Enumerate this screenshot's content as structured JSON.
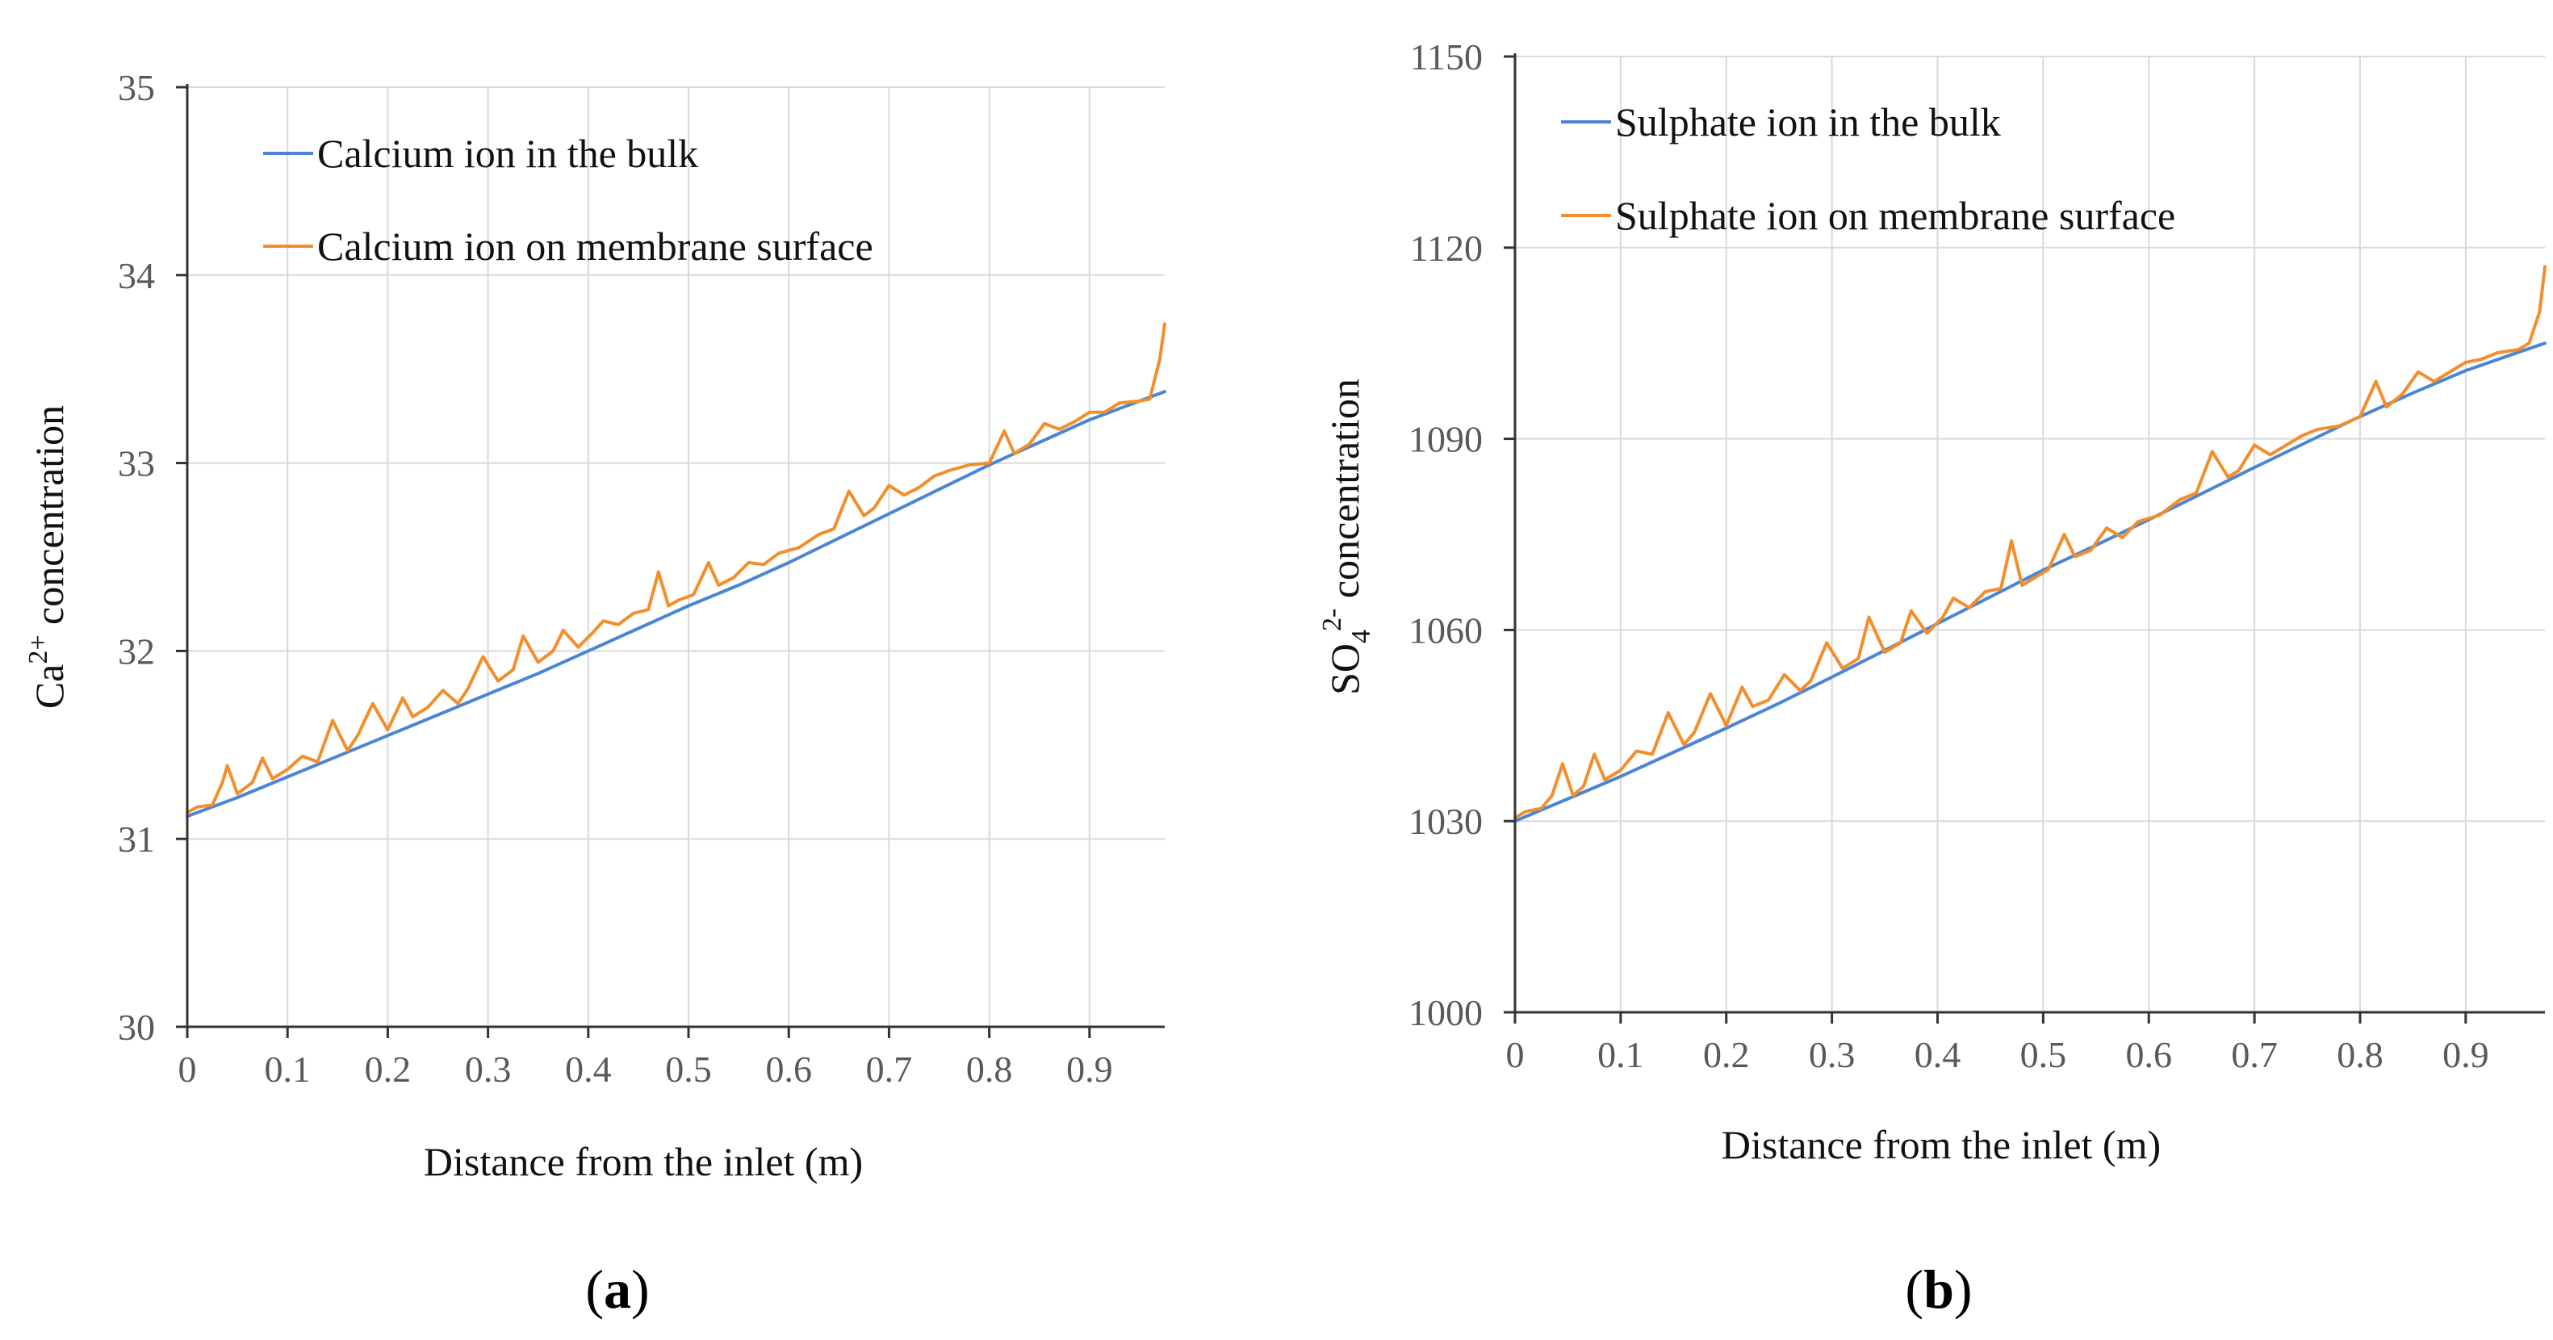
{
  "colors": {
    "bulk": "#4a86d4",
    "surface": "#f28e2b",
    "grid": "#d9d9d9",
    "frame": "#333333"
  },
  "chart_data": [
    {
      "type": "line",
      "panel_label": "a",
      "title": "",
      "xlabel": "Distance from the inlet (m)",
      "ylabel_main": "Ca",
      "ylabel_super": "2+",
      "ylabel_rest": " concentration",
      "xlim": [
        0,
        0.975
      ],
      "ylim": [
        30,
        35
      ],
      "xticks": [
        0,
        0.1,
        0.2,
        0.3,
        0.4,
        0.5,
        0.6,
        0.7,
        0.8,
        0.9
      ],
      "xtick_labels": [
        "0",
        "0.1",
        "0.2",
        "0.3",
        "0.4",
        "0.5",
        "0.6",
        "0.7",
        "0.8",
        "0.9"
      ],
      "yticks": [
        30,
        31,
        32,
        33,
        34,
        35
      ],
      "ytick_labels": [
        "30",
        "31",
        "32",
        "33",
        "34",
        "35"
      ],
      "grid": true,
      "legend_position": "top-left",
      "series": [
        {
          "name": "Calcium ion in the bulk",
          "color_key": "bulk",
          "x": [
            0,
            0.05,
            0.1,
            0.15,
            0.2,
            0.25,
            0.3,
            0.35,
            0.4,
            0.45,
            0.5,
            0.55,
            0.6,
            0.65,
            0.7,
            0.75,
            0.8,
            0.85,
            0.9,
            0.95,
            0.975
          ],
          "y": [
            31.12,
            31.22,
            31.33,
            31.44,
            31.55,
            31.66,
            31.77,
            31.88,
            32.0,
            32.12,
            32.24,
            32.35,
            32.47,
            32.6,
            32.73,
            32.86,
            32.99,
            33.11,
            33.23,
            33.33,
            33.38
          ]
        },
        {
          "name": "Calcium ion on membrane surface",
          "color_key": "surface",
          "x": [
            0,
            0.01,
            0.025,
            0.035,
            0.04,
            0.05,
            0.065,
            0.075,
            0.085,
            0.1,
            0.115,
            0.13,
            0.145,
            0.16,
            0.17,
            0.185,
            0.2,
            0.215,
            0.225,
            0.24,
            0.255,
            0.27,
            0.28,
            0.295,
            0.31,
            0.325,
            0.335,
            0.35,
            0.365,
            0.375,
            0.39,
            0.405,
            0.415,
            0.43,
            0.445,
            0.46,
            0.47,
            0.48,
            0.49,
            0.505,
            0.52,
            0.53,
            0.545,
            0.56,
            0.575,
            0.59,
            0.61,
            0.63,
            0.645,
            0.66,
            0.675,
            0.685,
            0.7,
            0.715,
            0.73,
            0.745,
            0.76,
            0.78,
            0.8,
            0.815,
            0.825,
            0.84,
            0.855,
            0.87,
            0.885,
            0.9,
            0.915,
            0.93,
            0.95,
            0.96,
            0.97,
            0.975
          ],
          "y": [
            31.14,
            31.17,
            31.18,
            31.3,
            31.39,
            31.24,
            31.3,
            31.43,
            31.32,
            31.37,
            31.44,
            31.41,
            31.63,
            31.47,
            31.55,
            31.72,
            31.58,
            31.75,
            31.65,
            31.7,
            31.79,
            31.72,
            31.8,
            31.97,
            31.84,
            31.9,
            32.08,
            31.94,
            32.0,
            32.11,
            32.02,
            32.1,
            32.16,
            32.14,
            32.2,
            32.22,
            32.42,
            32.24,
            32.27,
            32.3,
            32.47,
            32.35,
            32.39,
            32.47,
            32.46,
            32.52,
            32.55,
            32.62,
            32.65,
            32.85,
            32.72,
            32.76,
            32.88,
            32.83,
            32.87,
            32.93,
            32.96,
            32.99,
            33.0,
            33.17,
            33.05,
            33.1,
            33.21,
            33.18,
            33.22,
            33.27,
            33.27,
            33.32,
            33.33,
            33.34,
            33.55,
            33.74
          ]
        }
      ]
    },
    {
      "type": "line",
      "panel_label": "b",
      "title": "",
      "xlabel": "Distance from the inlet (m)",
      "ylabel_main": "SO",
      "ylabel_sub": "4",
      "ylabel_super": "2-",
      "ylabel_rest": " concentration",
      "xlim": [
        0,
        0.975
      ],
      "ylim": [
        1000,
        1150
      ],
      "xticks": [
        0,
        0.1,
        0.2,
        0.3,
        0.4,
        0.5,
        0.6,
        0.7,
        0.8,
        0.9
      ],
      "xtick_labels": [
        "0",
        "0.1",
        "0.2",
        "0.3",
        "0.4",
        "0.5",
        "0.6",
        "0.7",
        "0.8",
        "0.9"
      ],
      "yticks": [
        1000,
        1030,
        1060,
        1090,
        1120,
        1150
      ],
      "ytick_labels": [
        "1000",
        "1030",
        "1060",
        "1090",
        "1120",
        "1150"
      ],
      "grid": true,
      "legend_position": "top-left",
      "series": [
        {
          "name": "Sulphate ion in the bulk",
          "color_key": "bulk",
          "x": [
            0,
            0.05,
            0.1,
            0.15,
            0.2,
            0.25,
            0.3,
            0.35,
            0.4,
            0.45,
            0.5,
            0.55,
            0.6,
            0.65,
            0.7,
            0.75,
            0.8,
            0.85,
            0.9,
            0.95,
            0.975
          ],
          "y": [
            1030.0,
            1033.5,
            1037.0,
            1040.8,
            1044.6,
            1048.5,
            1052.6,
            1056.8,
            1061.0,
            1065.2,
            1069.4,
            1073.3,
            1077.3,
            1081.4,
            1085.5,
            1089.5,
            1093.5,
            1097.2,
            1100.7,
            1103.6,
            1105.0
          ]
        },
        {
          "name": "Sulphate ion on membrane surface",
          "color_key": "surface",
          "x": [
            0,
            0.01,
            0.025,
            0.035,
            0.045,
            0.055,
            0.065,
            0.075,
            0.085,
            0.1,
            0.115,
            0.13,
            0.145,
            0.16,
            0.17,
            0.185,
            0.2,
            0.215,
            0.225,
            0.24,
            0.255,
            0.27,
            0.28,
            0.295,
            0.31,
            0.325,
            0.335,
            0.35,
            0.365,
            0.375,
            0.39,
            0.405,
            0.415,
            0.43,
            0.445,
            0.46,
            0.47,
            0.48,
            0.49,
            0.505,
            0.52,
            0.53,
            0.545,
            0.56,
            0.575,
            0.59,
            0.61,
            0.63,
            0.645,
            0.66,
            0.675,
            0.685,
            0.7,
            0.715,
            0.73,
            0.745,
            0.76,
            0.78,
            0.8,
            0.815,
            0.825,
            0.84,
            0.855,
            0.87,
            0.885,
            0.9,
            0.915,
            0.93,
            0.95,
            0.96,
            0.97,
            0.975
          ],
          "y": [
            1030.5,
            1031.5,
            1032.0,
            1034.0,
            1039.0,
            1034.0,
            1035.5,
            1040.5,
            1036.5,
            1038.0,
            1041.0,
            1040.5,
            1047.0,
            1042.0,
            1044.0,
            1050.0,
            1045.0,
            1051.0,
            1048.0,
            1049.0,
            1053.0,
            1050.5,
            1052.0,
            1058.0,
            1054.0,
            1055.5,
            1062.0,
            1056.5,
            1058.0,
            1063.0,
            1059.5,
            1062.0,
            1065.0,
            1063.5,
            1066.0,
            1066.5,
            1074.0,
            1067.0,
            1068.0,
            1069.5,
            1075.0,
            1071.5,
            1072.5,
            1076.0,
            1074.5,
            1077.0,
            1078.0,
            1080.5,
            1081.5,
            1088.0,
            1084.0,
            1085.0,
            1089.0,
            1087.5,
            1089.0,
            1090.5,
            1091.5,
            1092.0,
            1093.5,
            1099.0,
            1095.0,
            1097.0,
            1100.5,
            1099.0,
            1100.5,
            1102.0,
            1102.5,
            1103.5,
            1104.0,
            1105.0,
            1110.0,
            1117.0
          ]
        }
      ]
    }
  ]
}
